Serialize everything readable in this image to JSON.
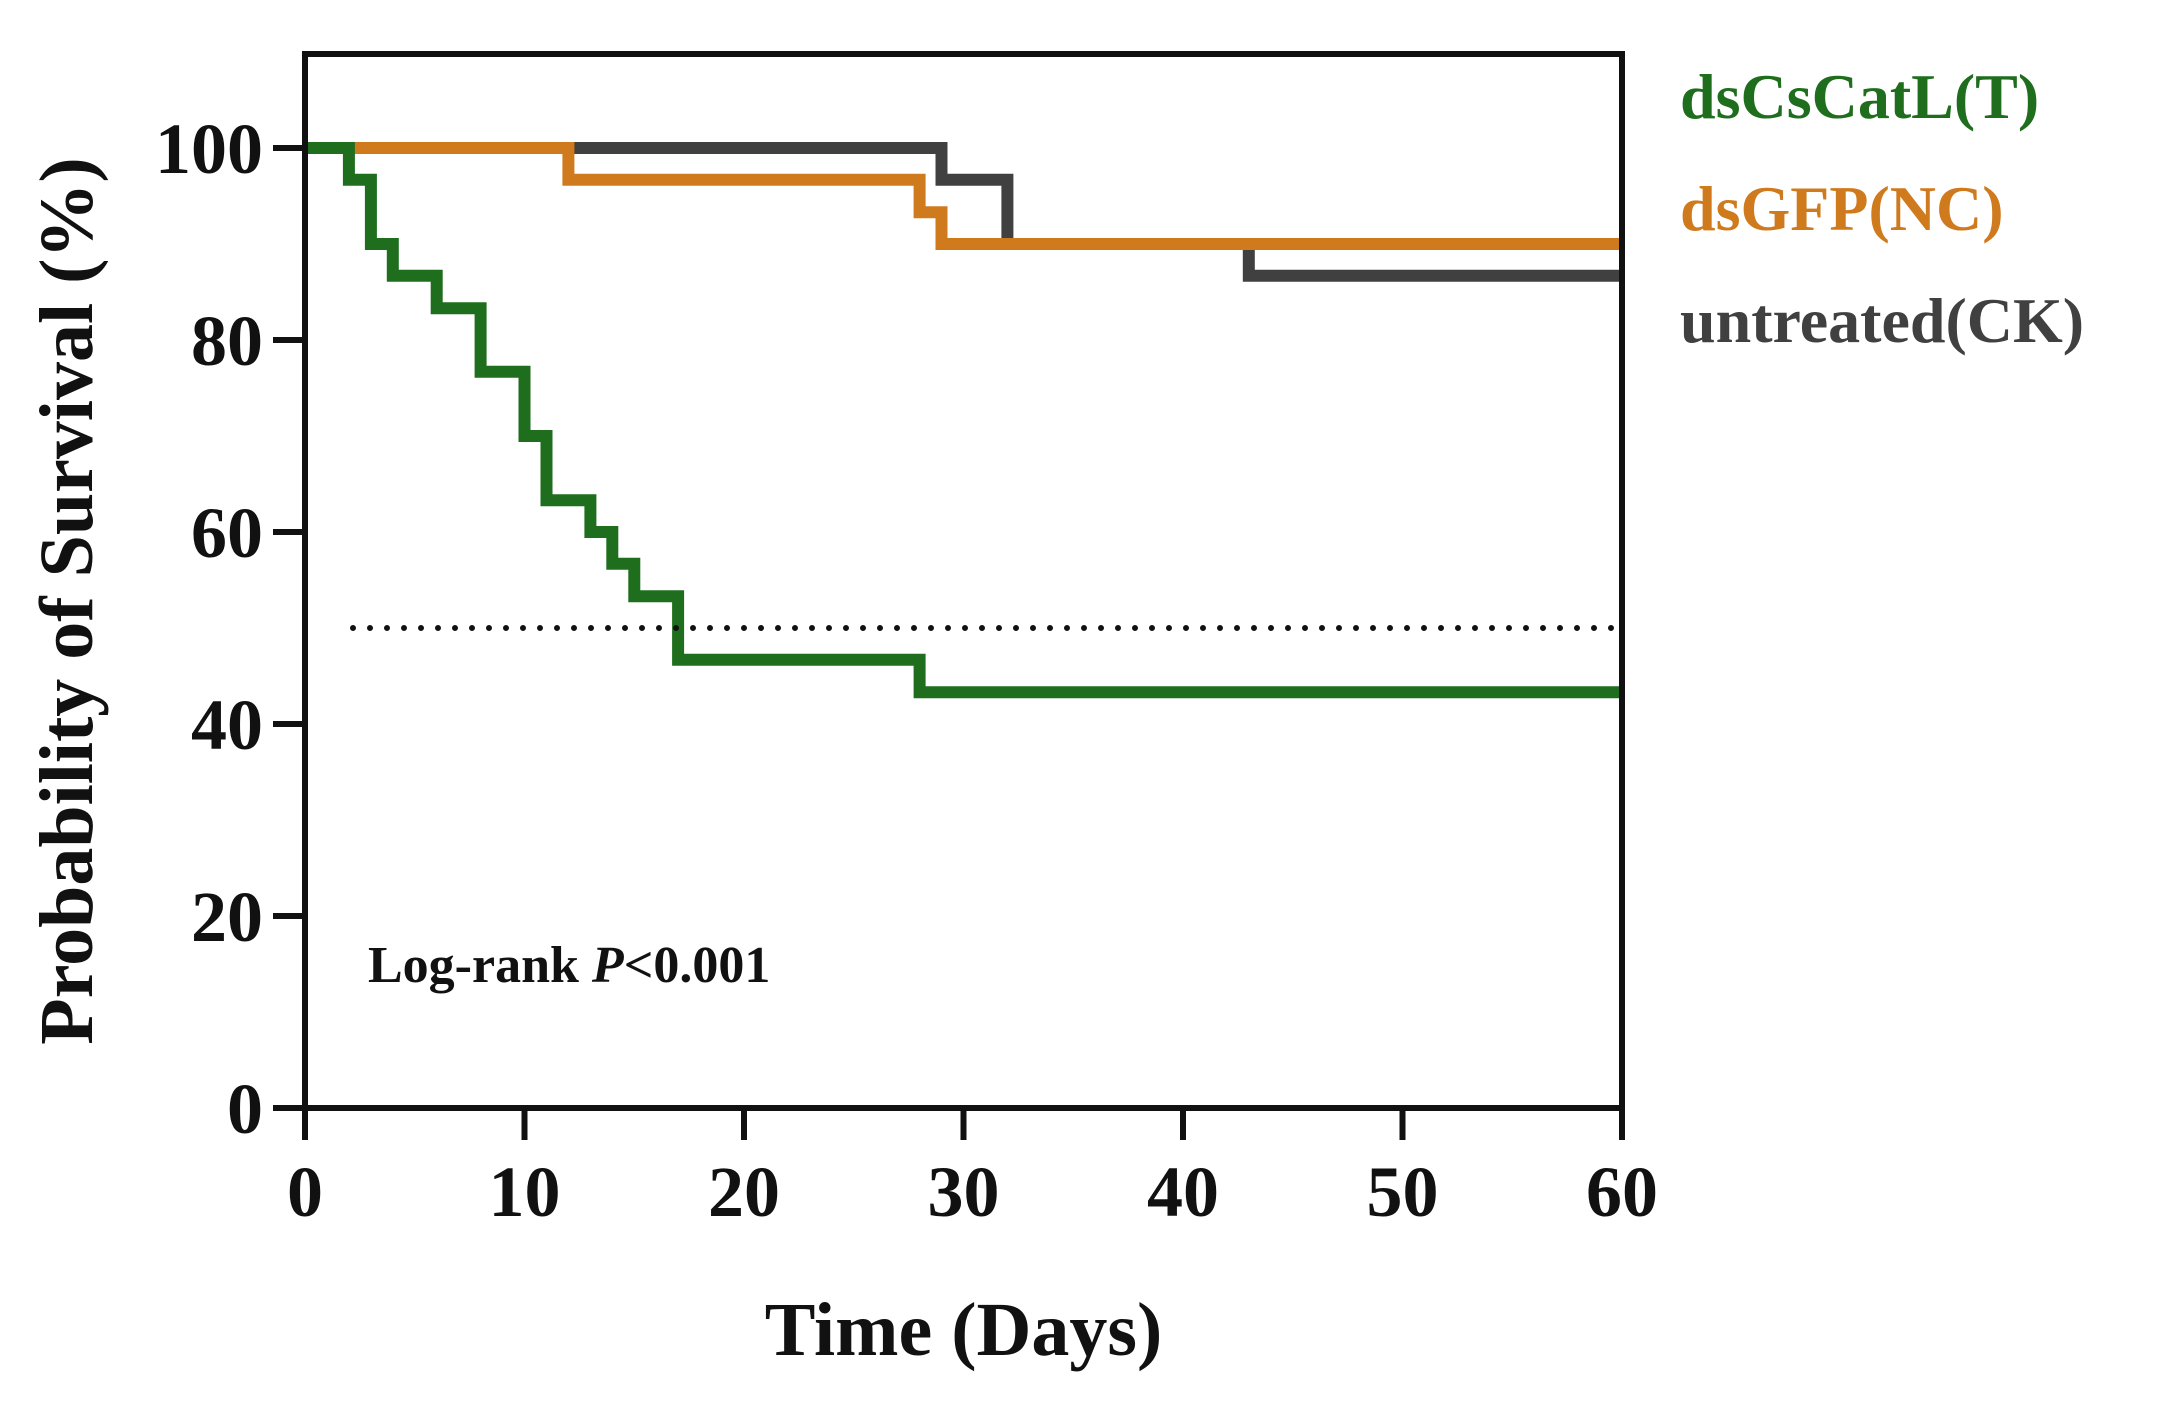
{
  "chart_data": {
    "type": "line",
    "subtype": "kaplan-meier-step",
    "xlabel": "Time (Days)",
    "ylabel": "Probability of Survival (%)",
    "xlim": [
      0,
      60
    ],
    "ylim": [
      0,
      100
    ],
    "xticks": [
      0,
      10,
      20,
      30,
      40,
      50,
      60
    ],
    "yticks": [
      0,
      20,
      40,
      60,
      80,
      100
    ],
    "grid": false,
    "legend_position": "right",
    "reference_line": {
      "y": 50,
      "style": "dotted",
      "color": "#111111"
    },
    "annotation": {
      "prefix": "Log-rank ",
      "italic": "P",
      "suffix": "<0.001"
    },
    "series": [
      {
        "name": "dsCsCatL(T)",
        "color": "#1e6e1e",
        "points": [
          [
            0,
            100
          ],
          [
            2,
            100
          ],
          [
            2,
            96.7
          ],
          [
            3,
            96.7
          ],
          [
            3,
            90.0
          ],
          [
            4,
            90.0
          ],
          [
            4,
            86.7
          ],
          [
            6,
            86.7
          ],
          [
            6,
            83.3
          ],
          [
            8,
            83.3
          ],
          [
            8,
            76.7
          ],
          [
            10,
            76.7
          ],
          [
            10,
            70.0
          ],
          [
            11,
            70.0
          ],
          [
            11,
            63.3
          ],
          [
            13,
            63.3
          ],
          [
            13,
            60.0
          ],
          [
            14,
            60.0
          ],
          [
            14,
            56.7
          ],
          [
            15,
            56.7
          ],
          [
            15,
            53.3
          ],
          [
            17,
            53.3
          ],
          [
            17,
            46.7
          ],
          [
            28,
            46.7
          ],
          [
            28,
            43.3
          ],
          [
            60,
            43.3
          ]
        ]
      },
      {
        "name": "dsGFP(NC)",
        "color": "#d07a1e",
        "points": [
          [
            0,
            100
          ],
          [
            12,
            100
          ],
          [
            12,
            96.7
          ],
          [
            28,
            96.7
          ],
          [
            28,
            93.3
          ],
          [
            29,
            93.3
          ],
          [
            29,
            90.0
          ],
          [
            60,
            90.0
          ]
        ]
      },
      {
        "name": "untreated(CK)",
        "color": "#404040",
        "points": [
          [
            0,
            100
          ],
          [
            29,
            100
          ],
          [
            29,
            96.7
          ],
          [
            32,
            96.7
          ],
          [
            32,
            90.0
          ],
          [
            43,
            90.0
          ],
          [
            43,
            86.7
          ],
          [
            60,
            86.7
          ]
        ]
      }
    ]
  }
}
